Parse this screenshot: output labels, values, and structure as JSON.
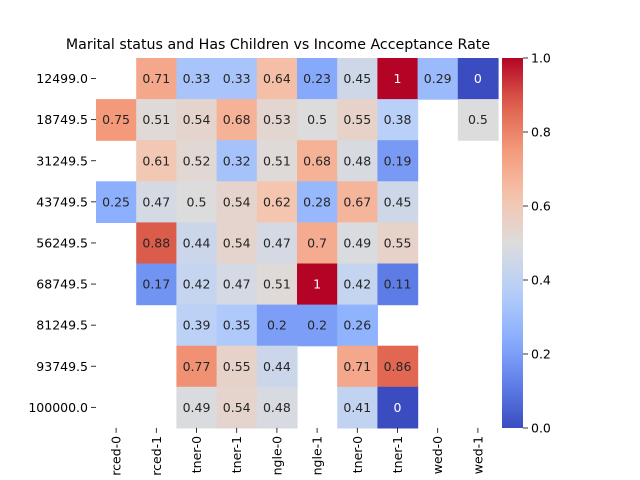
{
  "chart_data": {
    "type": "heatmap",
    "title": "Marital status and Has Children vs Income Acceptance Rate",
    "xlabel": "",
    "ylabel": "",
    "x_categories": [
      "rced-0",
      "rced-1",
      "tner-0",
      "tner-1",
      "ngle-0",
      "ngle-1",
      "tner-0",
      "tner-1",
      "wed-0",
      "wed-1"
    ],
    "y_categories": [
      "12499.0",
      "18749.5",
      "31249.5",
      "43749.5",
      "56249.5",
      "68749.5",
      "81249.5",
      "93749.5",
      "100000.0"
    ],
    "values": [
      [
        null,
        0.71,
        0.33,
        0.33,
        0.64,
        0.23,
        0.45,
        1,
        0.29,
        0
      ],
      [
        0.75,
        0.51,
        0.54,
        0.68,
        0.53,
        0.5,
        0.55,
        0.38,
        null,
        0.5
      ],
      [
        null,
        0.61,
        0.52,
        0.32,
        0.51,
        0.68,
        0.48,
        0.19,
        null,
        null
      ],
      [
        0.25,
        0.47,
        0.5,
        0.54,
        0.62,
        0.28,
        0.67,
        0.45,
        null,
        null
      ],
      [
        null,
        0.88,
        0.44,
        0.54,
        0.47,
        0.7,
        0.49,
        0.55,
        null,
        null
      ],
      [
        null,
        0.17,
        0.42,
        0.47,
        0.51,
        1,
        0.42,
        0.11,
        null,
        null
      ],
      [
        null,
        null,
        0.39,
        0.35,
        0.2,
        0.2,
        0.26,
        null,
        null,
        null
      ],
      [
        null,
        null,
        0.77,
        0.55,
        0.44,
        null,
        0.71,
        0.86,
        null,
        null
      ],
      [
        null,
        null,
        0.49,
        0.54,
        0.48,
        null,
        0.41,
        0,
        null,
        null
      ]
    ],
    "colormap": "coolwarm",
    "vmin": 0,
    "vmax": 1,
    "colorbar_ticks": [
      "0.0",
      "0.2",
      "0.4",
      "0.6",
      "0.8",
      "1.0"
    ],
    "annotations": true
  }
}
